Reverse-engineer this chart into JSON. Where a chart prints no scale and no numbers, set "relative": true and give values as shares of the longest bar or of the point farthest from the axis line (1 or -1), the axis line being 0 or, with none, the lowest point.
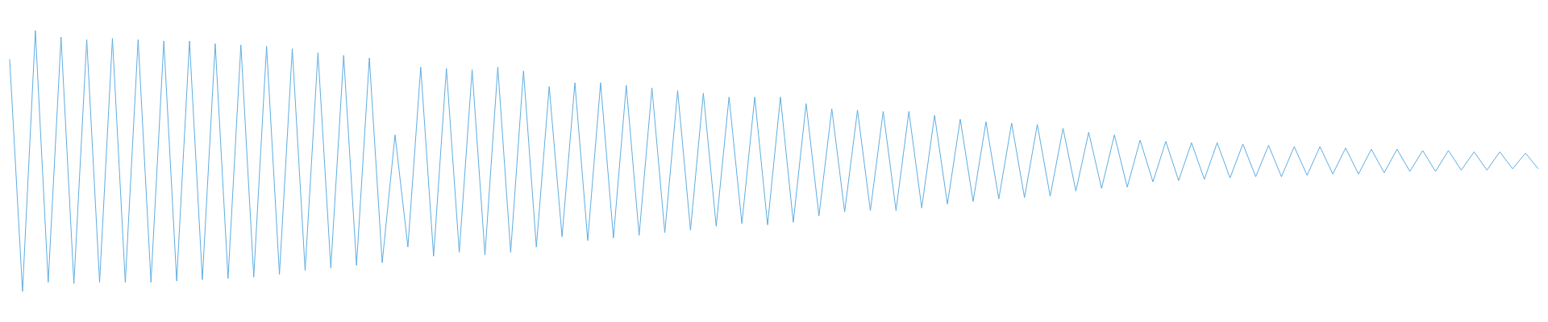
{
  "chart_data": {
    "type": "line",
    "relative": true,
    "categories": [
      null,
      null,
      null,
      null,
      null,
      null,
      null,
      null,
      null,
      null,
      null,
      null,
      null,
      null,
      null,
      null,
      null,
      null,
      null,
      null,
      null,
      null,
      null,
      null,
      null,
      null,
      null,
      null,
      null,
      null,
      null,
      null,
      null,
      null,
      null,
      null,
      null,
      null,
      null,
      null,
      null,
      null,
      null,
      null,
      null,
      null,
      null,
      null,
      null,
      null,
      null,
      null,
      null,
      null,
      null,
      null,
      null,
      null,
      null,
      null,
      null,
      null,
      null,
      null,
      null,
      null,
      null,
      null,
      null,
      null,
      null,
      null,
      null,
      null,
      null,
      null,
      null,
      null,
      null,
      null,
      null,
      null,
      null,
      null,
      null,
      null,
      null,
      null,
      null,
      null,
      null,
      null,
      null,
      null,
      null,
      null,
      null,
      null,
      null,
      null,
      null,
      null,
      null,
      null,
      null,
      null,
      null,
      null,
      null,
      null,
      null,
      null,
      null,
      null,
      null,
      null,
      null,
      null,
      null,
      null
    ],
    "series": [
      {
        "color": "#5dade2",
        "values": [
          0.89,
          0,
          1,
          0.035,
          0.975,
          0.03,
          0.965,
          0.035,
          0.97,
          0.035,
          0.965,
          0.035,
          0.96,
          0.04,
          0.96,
          0.045,
          0.95,
          0.05,
          0.945,
          0.055,
          0.94,
          0.065,
          0.93,
          0.08,
          0.915,
          0.09,
          0.905,
          0.1,
          0.895,
          0.11,
          0.6,
          0.17,
          0.86,
          0.135,
          0.855,
          0.15,
          0.85,
          0.14,
          0.86,
          0.15,
          0.845,
          0.17,
          0.785,
          0.21,
          0.8,
          0.195,
          0.8,
          0.205,
          0.79,
          0.215,
          0.78,
          0.225,
          0.77,
          0.235,
          0.76,
          0.25,
          0.745,
          0.26,
          0.745,
          0.255,
          0.745,
          0.265,
          0.72,
          0.29,
          0.7,
          0.305,
          0.695,
          0.31,
          0.69,
          0.31,
          0.69,
          0.32,
          0.675,
          0.335,
          0.66,
          0.345,
          0.65,
          0.355,
          0.645,
          0.36,
          0.64,
          0.365,
          0.625,
          0.385,
          0.61,
          0.395,
          0.6,
          0.4,
          0.58,
          0.42,
          0.575,
          0.425,
          0.57,
          0.43,
          0.57,
          0.435,
          0.565,
          0.44,
          0.56,
          0.44,
          0.555,
          0.445,
          0.555,
          0.45,
          0.55,
          0.45,
          0.545,
          0.455,
          0.545,
          0.46,
          0.54,
          0.46,
          0.54,
          0.465,
          0.535,
          0.465,
          0.535,
          0.47,
          0.53,
          0.47
        ]
      }
    ]
  }
}
